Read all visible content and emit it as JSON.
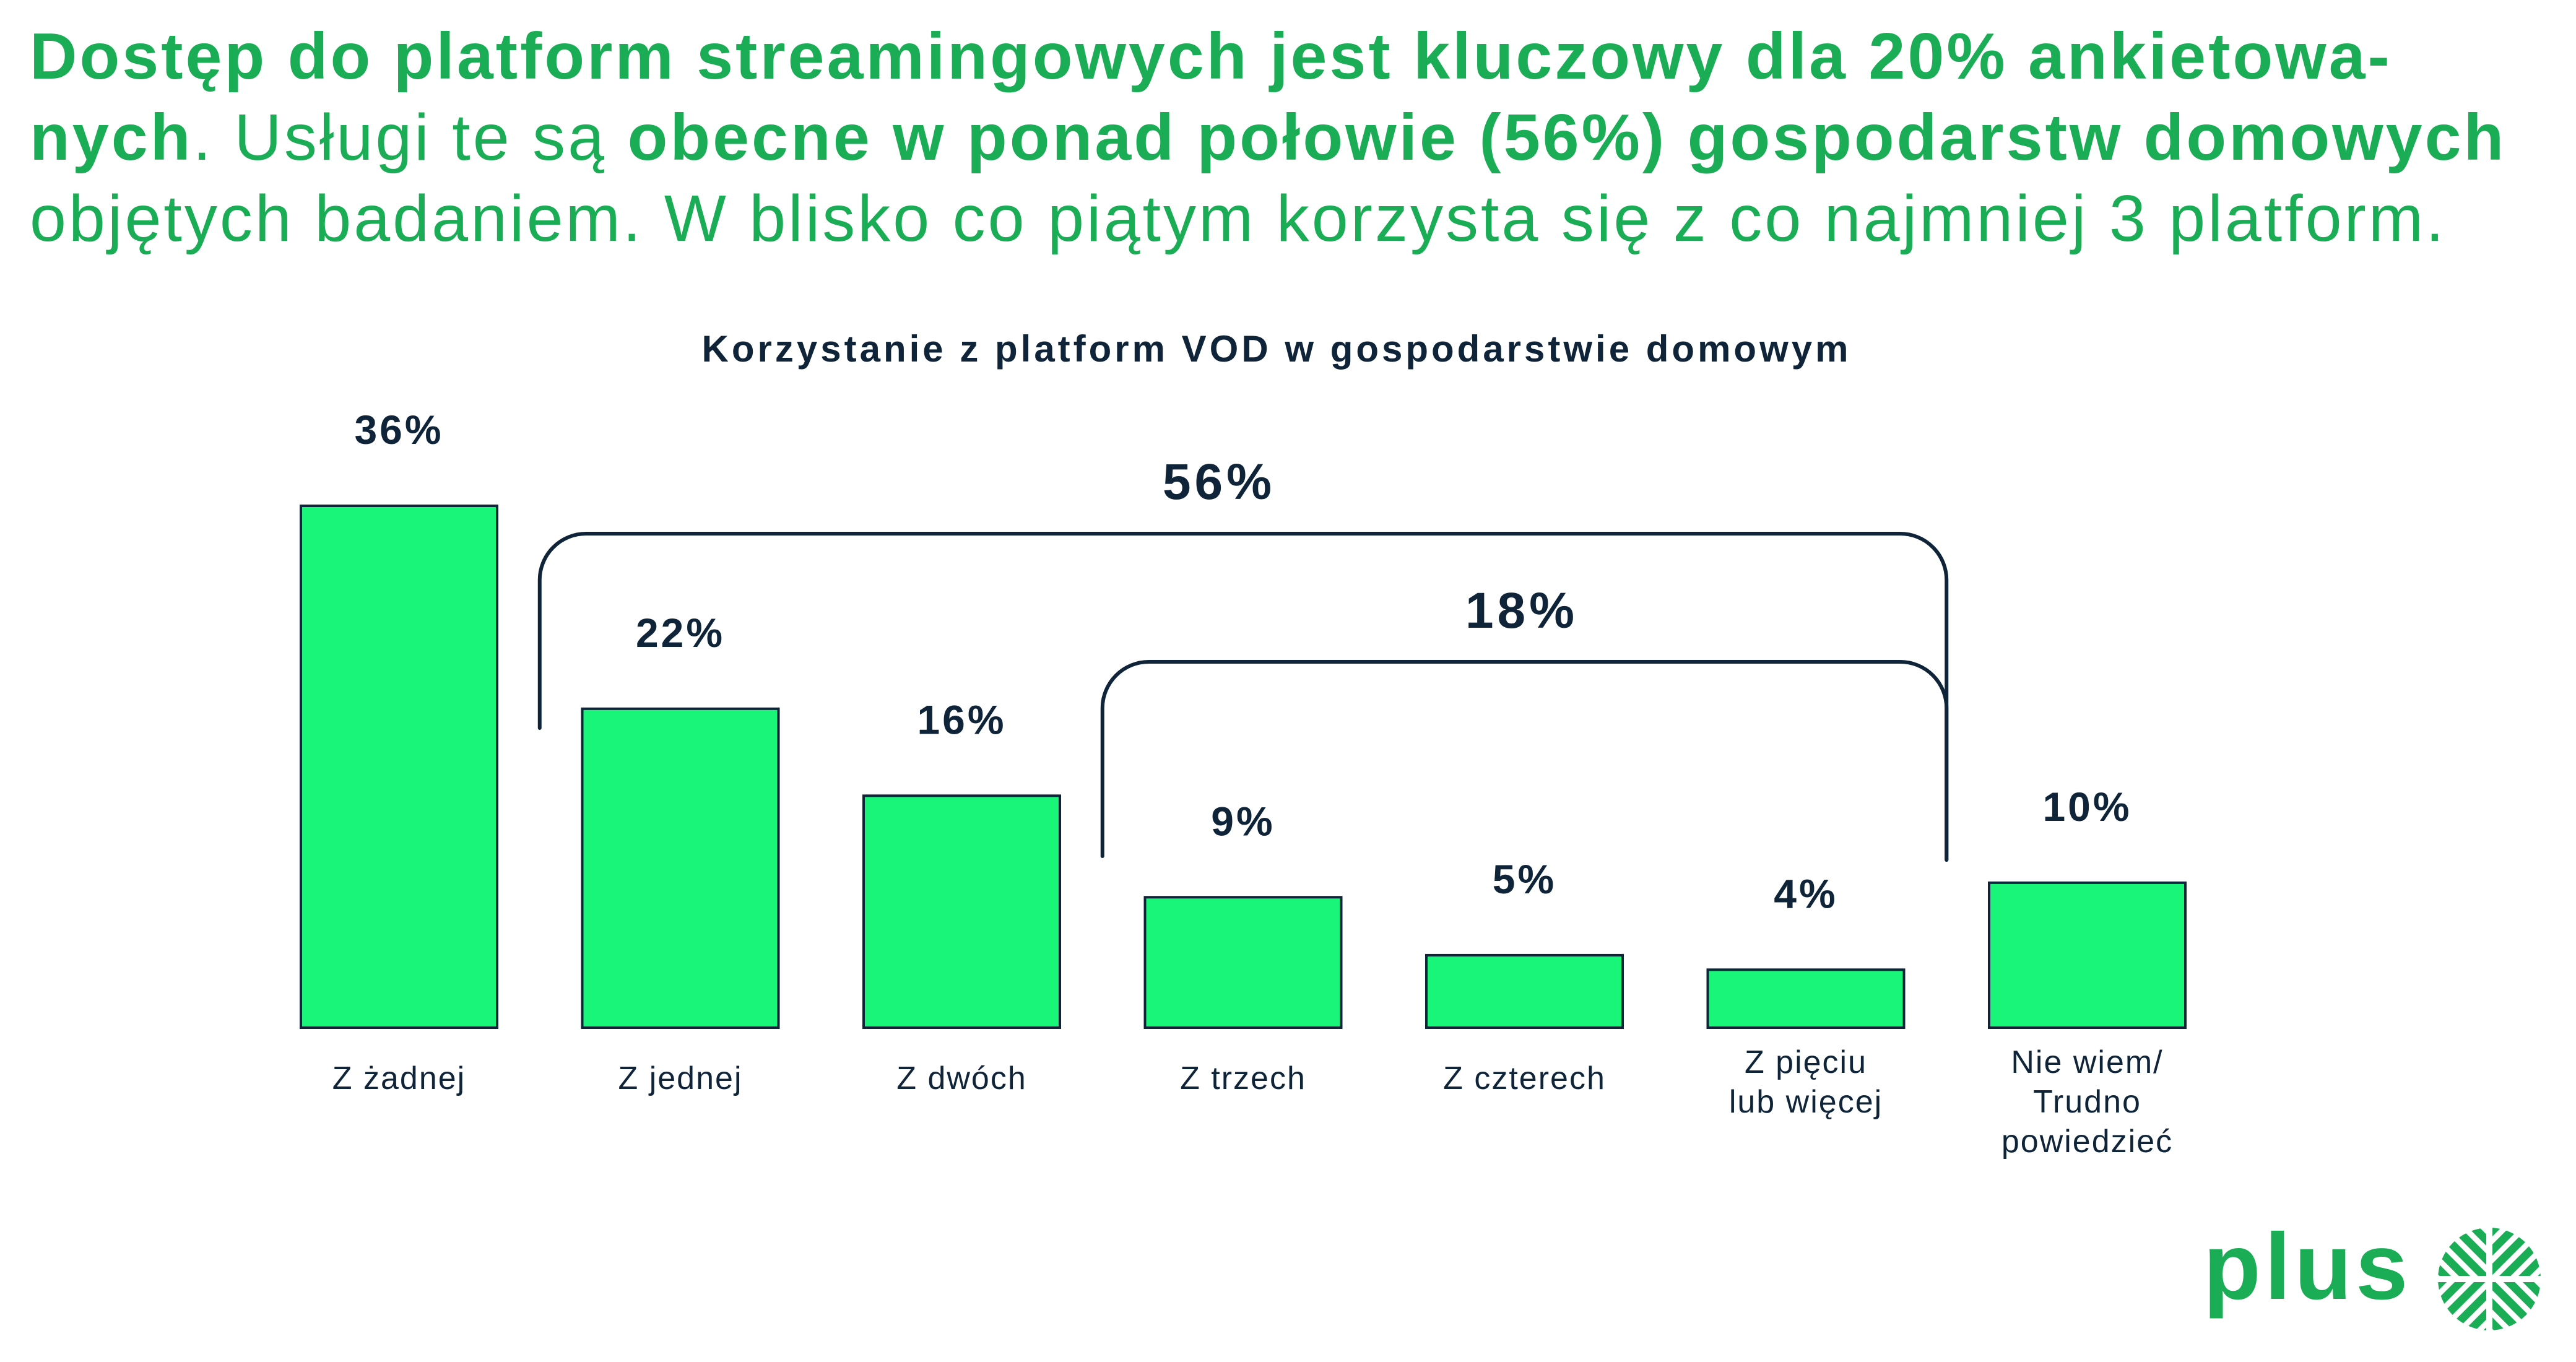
{
  "colors": {
    "headline": "#1aad55",
    "bar_fill": "#19f578",
    "ink": "#0f2438",
    "logo": "#1aad55"
  },
  "headline": {
    "line1": [
      "Dostęp do platform streamingowych jest kluczowy dla 20% ankietowa-"
    ],
    "line2": [
      "nych",
      ". Usługi te są ",
      "obecne w ponad połowie (56%) gospodarstw domowych"
    ],
    "line3": [
      "objętych badaniem. W blisko co piątym korzysta się z co najmniej 3 platform."
    ]
  },
  "chart_data": {
    "type": "bar",
    "title": "Korzystanie z platform VOD w gospodarstwie domowym",
    "categories": [
      "Z żadnej",
      "Z jednej",
      "Z dwóch",
      "Z trzech",
      "Z czterech",
      "Z pięciu\nlub więcej",
      "Nie wiem/\nTrudno\npowiedzieć"
    ],
    "values": [
      36,
      22,
      16,
      9,
      5,
      4,
      10
    ],
    "value_labels": [
      "36%",
      "22%",
      "16%",
      "9%",
      "5%",
      "4%",
      "10%"
    ],
    "brackets": [
      {
        "label": "56%",
        "from": 1,
        "to": 5
      },
      {
        "label": "18%",
        "from": 3,
        "to": 5
      }
    ],
    "xlabel": "",
    "ylabel": "",
    "grid": false,
    "axes_visible": false
  },
  "logo": {
    "text": "plus",
    "icon": "plus-logo-icon"
  }
}
